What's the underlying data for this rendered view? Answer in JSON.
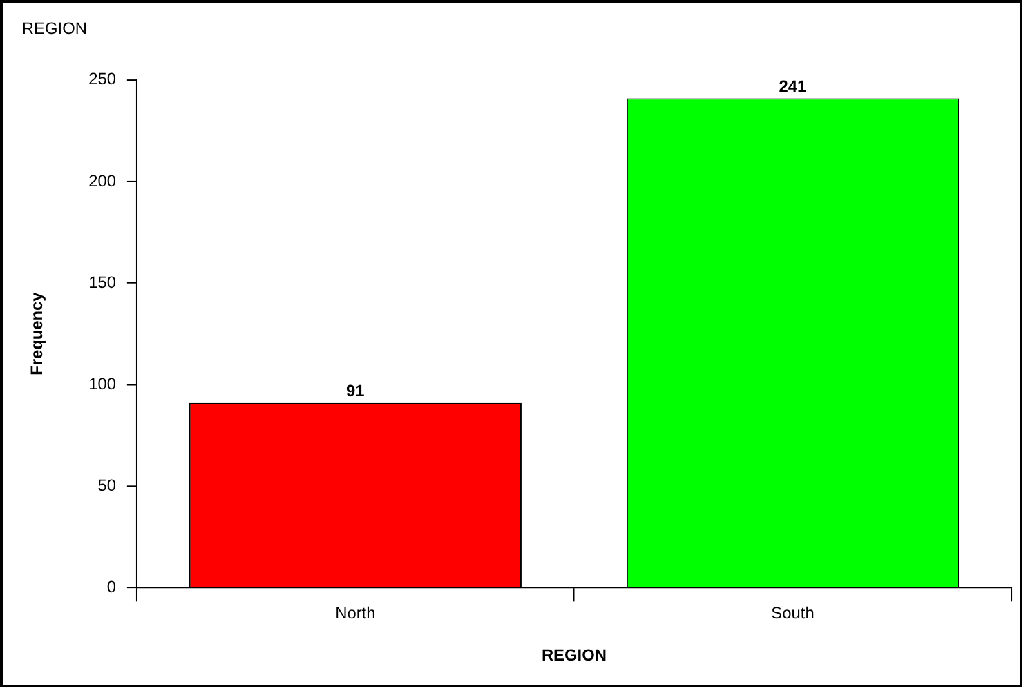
{
  "chart_data": {
    "type": "bar",
    "title": "REGION",
    "xlabel": "REGION",
    "ylabel": "Frequency",
    "categories": [
      "North",
      "South"
    ],
    "values": [
      91,
      241
    ],
    "colors": [
      "#ff0000",
      "#00ff00"
    ],
    "ylim": [
      0,
      250
    ],
    "yticks": [
      0,
      50,
      100,
      150,
      200,
      250
    ],
    "grid": false,
    "legend": false,
    "data_labels": true
  }
}
